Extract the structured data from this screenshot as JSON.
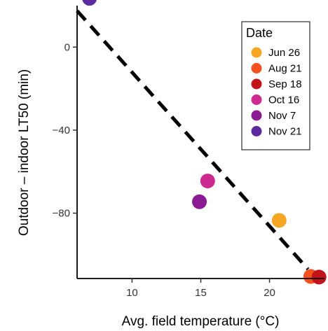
{
  "chart_data": {
    "type": "scatter",
    "xlabel": "Avg. field temperature (°C)",
    "ylabel": "Outdoor – indoor LT50 (min)",
    "xlim": [
      6,
      24
    ],
    "ylim": [
      -111.5,
      20
    ],
    "xticks": [
      10,
      15,
      20
    ],
    "yticks": [
      0,
      -40,
      -80
    ],
    "ytick_labels": [
      "0",
      "−40",
      "−80"
    ],
    "grid": false,
    "legend": {
      "title": "Date",
      "placement": "top-right"
    },
    "series": [
      {
        "name": "Jun 26",
        "color": "#F5A623",
        "x": [
          20.7
        ],
        "y": [
          -83.5
        ]
      },
      {
        "name": "Aug 21",
        "color": "#F4511E",
        "x": [
          23.0
        ],
        "y": [
          -110.5
        ]
      },
      {
        "name": "Sep 18",
        "color": "#C2131A",
        "x": [
          23.6
        ],
        "y": [
          -110.8
        ]
      },
      {
        "name": "Oct 16",
        "color": "#CC2A8F",
        "x": [
          15.5
        ],
        "y": [
          -64.5
        ]
      },
      {
        "name": "Nov 7",
        "color": "#8A1A94",
        "x": [
          14.9
        ],
        "y": [
          -74.5
        ]
      },
      {
        "name": "Nov 21",
        "color": "#5A2A9E",
        "x": [
          6.9
        ],
        "y": [
          23.5
        ]
      }
    ],
    "trend_line": {
      "style": "dashed",
      "color": "#000000",
      "x": [
        6.0,
        22.8
      ],
      "y": [
        17.5,
        -107.0
      ]
    }
  }
}
